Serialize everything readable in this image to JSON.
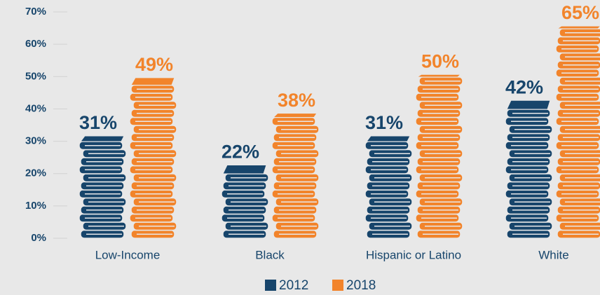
{
  "chart_data": {
    "type": "bar",
    "categories": [
      "Low-Income",
      "Black",
      "Hispanic or Latino",
      "White"
    ],
    "series": [
      {
        "name": "2012",
        "color": "#17456b",
        "values": [
          31,
          22,
          31,
          42
        ],
        "value_labels": [
          "31%",
          "22%",
          "31%",
          "42%"
        ]
      },
      {
        "name": "2018",
        "color": "#f2842b",
        "values": [
          49,
          38,
          50,
          65
        ],
        "value_labels": [
          "49%",
          "38%",
          "50%",
          "65%"
        ]
      }
    ],
    "ylim": [
      0,
      70
    ],
    "yticks": [
      {
        "value": 0,
        "label": "0%"
      },
      {
        "value": 10,
        "label": "10%"
      },
      {
        "value": 20,
        "label": "20%"
      },
      {
        "value": 30,
        "label": "30%"
      },
      {
        "value": 40,
        "label": "40%"
      },
      {
        "value": 50,
        "label": "50%"
      },
      {
        "value": 60,
        "label": "60%"
      },
      {
        "value": 70,
        "label": "70%"
      }
    ],
    "legend": "bottom"
  }
}
